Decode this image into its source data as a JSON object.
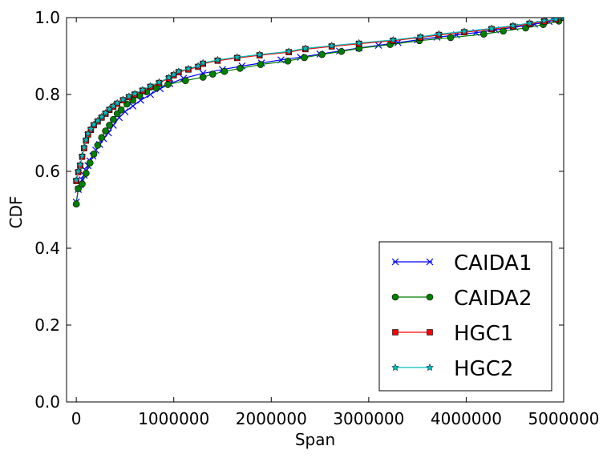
{
  "chart_data": {
    "type": "line",
    "xlabel": "Span",
    "ylabel": "CDF",
    "xlim": [
      -100000,
      5000000
    ],
    "ylim": [
      0.0,
      1.0
    ],
    "xticks": [
      0,
      1000000,
      2000000,
      3000000,
      4000000,
      5000000
    ],
    "xtick_labels": [
      "0",
      "1000000",
      "2000000",
      "3000000",
      "4000000",
      "5000000"
    ],
    "yticks": [
      0.0,
      0.2,
      0.4,
      0.6,
      0.8,
      1.0
    ],
    "ytick_labels": [
      "0.0",
      "0.2",
      "0.4",
      "0.6",
      "0.8",
      "1.0"
    ],
    "grid": false,
    "legend_position": "bottom-right",
    "series": [
      {
        "name": "CAIDA1",
        "color": "#0000ff",
        "marker": "x",
        "x": [
          0,
          20000,
          40000,
          60000,
          80000,
          100000,
          120000,
          140000,
          170000,
          200000,
          240000,
          280000,
          330000,
          380000,
          440000,
          500000,
          580000,
          660000,
          760000,
          860000,
          960000,
          1100000,
          1300000,
          1500000,
          1700000,
          1900000,
          2100000,
          2300000,
          2500000,
          2700000,
          2900000,
          3100000,
          3300000,
          3500000,
          3700000,
          3900000,
          4100000,
          4300000,
          4500000,
          4700000,
          4850000,
          5000000
        ],
        "y": [
          0.52,
          0.553,
          0.565,
          0.578,
          0.59,
          0.602,
          0.615,
          0.627,
          0.64,
          0.655,
          0.67,
          0.685,
          0.7,
          0.72,
          0.74,
          0.755,
          0.77,
          0.785,
          0.8,
          0.815,
          0.828,
          0.842,
          0.855,
          0.865,
          0.874,
          0.882,
          0.89,
          0.897,
          0.905,
          0.913,
          0.921,
          0.928,
          0.935,
          0.942,
          0.949,
          0.955,
          0.961,
          0.968,
          0.975,
          0.983,
          0.99,
          1.0
        ]
      },
      {
        "name": "CAIDA2",
        "color": "#008000",
        "marker": "o",
        "x": [
          0,
          20000,
          60000,
          100000,
          140000,
          180000,
          220000,
          260000,
          300000,
          340000,
          380000,
          420000,
          460000,
          520000,
          580000,
          650000,
          720000,
          820000,
          940000,
          1120000,
          1300000,
          1400000,
          1520000,
          1680000,
          1890000,
          2170000,
          2340000,
          2520000,
          2720000,
          2900000,
          3220000,
          3520000,
          3840000,
          4180000,
          4380000,
          4610000,
          4790000,
          4950000,
          5000000
        ],
        "y": [
          0.515,
          0.555,
          0.567,
          0.595,
          0.622,
          0.645,
          0.668,
          0.688,
          0.705,
          0.72,
          0.735,
          0.75,
          0.76,
          0.775,
          0.785,
          0.797,
          0.807,
          0.817,
          0.826,
          0.836,
          0.845,
          0.853,
          0.86,
          0.868,
          0.878,
          0.887,
          0.896,
          0.904,
          0.912,
          0.92,
          0.93,
          0.94,
          0.948,
          0.957,
          0.965,
          0.973,
          0.982,
          0.991,
          1.0
        ]
      },
      {
        "name": "HGC1",
        "color": "#ff0000",
        "marker": "s",
        "x": [
          0,
          20000,
          40000,
          60000,
          80000,
          100000,
          120000,
          150000,
          180000,
          220000,
          260000,
          300000,
          340000,
          380000,
          420000,
          480000,
          540000,
          600000,
          680000,
          760000,
          850000,
          950000,
          1000000,
          1050000,
          1150000,
          1250000,
          1300000,
          1450000,
          1650000,
          1880000,
          2180000,
          2350000,
          2620000,
          2900000,
          3250000,
          3530000,
          3720000,
          3980000,
          4260000,
          4480000,
          4650000,
          4800000,
          4920000,
          5000000
        ],
        "y": [
          0.575,
          0.598,
          0.615,
          0.638,
          0.66,
          0.68,
          0.696,
          0.708,
          0.72,
          0.73,
          0.74,
          0.75,
          0.76,
          0.768,
          0.776,
          0.785,
          0.793,
          0.8,
          0.81,
          0.82,
          0.83,
          0.842,
          0.85,
          0.858,
          0.865,
          0.872,
          0.88,
          0.888,
          0.895,
          0.902,
          0.91,
          0.918,
          0.925,
          0.932,
          0.94,
          0.948,
          0.955,
          0.962,
          0.97,
          0.977,
          0.984,
          0.99,
          0.995,
          1.0
        ]
      },
      {
        "name": "HGC2",
        "color": "#00bfbf",
        "marker": "*",
        "x": [
          0,
          20000,
          40000,
          60000,
          80000,
          100000,
          120000,
          150000,
          180000,
          220000,
          260000,
          300000,
          340000,
          380000,
          420000,
          480000,
          540000,
          600000,
          680000,
          760000,
          850000,
          950000,
          1000000,
          1050000,
          1150000,
          1250000,
          1300000,
          1450000,
          1650000,
          1880000,
          2180000,
          2350000,
          2620000,
          2900000,
          3250000,
          3530000,
          3720000,
          3980000,
          4260000,
          4480000,
          4650000,
          4800000,
          4920000,
          5000000
        ],
        "y": [
          0.577,
          0.6,
          0.617,
          0.64,
          0.662,
          0.682,
          0.698,
          0.71,
          0.722,
          0.732,
          0.742,
          0.752,
          0.762,
          0.77,
          0.778,
          0.787,
          0.795,
          0.802,
          0.812,
          0.822,
          0.832,
          0.844,
          0.852,
          0.86,
          0.867,
          0.874,
          0.882,
          0.89,
          0.897,
          0.904,
          0.912,
          0.92,
          0.927,
          0.934,
          0.942,
          0.95,
          0.957,
          0.964,
          0.972,
          0.979,
          0.986,
          0.992,
          0.996,
          1.0
        ]
      }
    ]
  }
}
